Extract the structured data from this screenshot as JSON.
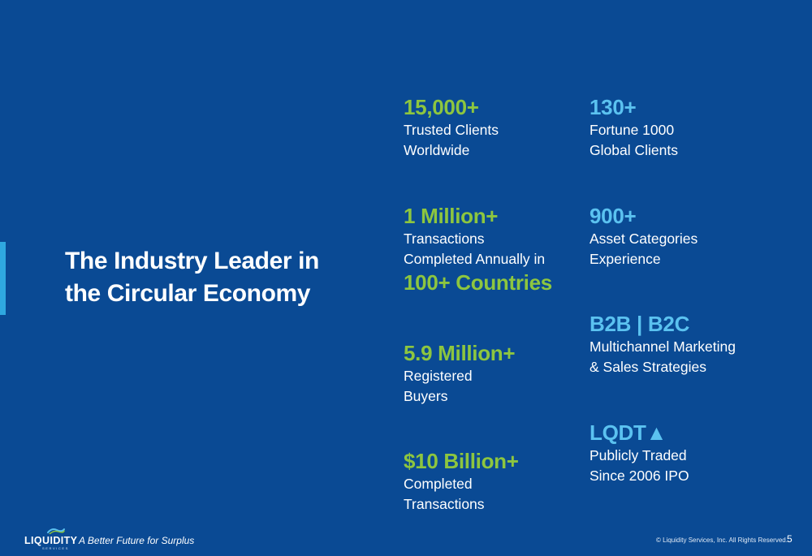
{
  "colors": {
    "background": "#0a4a94",
    "green": "#8dc63f",
    "blue": "#5bc2f0",
    "accent_bar": "#2fa8e0"
  },
  "headline": {
    "line1": "The Industry Leader in",
    "line2": "the Circular Economy"
  },
  "left_stats": [
    {
      "value": "15,000+",
      "label1": "Trusted Clients",
      "label2": "Worldwide"
    },
    {
      "value": "1 Million+",
      "label1": "Transactions",
      "label2": "Completed Annually in",
      "value2": "100+ Countries"
    },
    {
      "value": "5.9 Million+",
      "label1": "Registered",
      "label2": "Buyers"
    },
    {
      "value": "$10 Billion+",
      "label1": "Completed",
      "label2": "Transactions"
    }
  ],
  "right_stats": [
    {
      "value": "130+",
      "label1": "Fortune 1000",
      "label2": "Global Clients"
    },
    {
      "value": "900+",
      "label1": "Asset Categories",
      "label2": "Experience"
    },
    {
      "value": "B2B | B2C",
      "label1": "Multichannel Marketing",
      "label2": "& Sales Strategies"
    },
    {
      "value": "LQDT▲",
      "label1": "Publicly Traded",
      "label2": "Since 2006 IPO"
    }
  ],
  "footer": {
    "logo_text": "LIQUIDITY",
    "logo_subtext": "SERVICES",
    "logo_icon": "wave-logo-icon",
    "tagline": "A Better Future for Surplus",
    "copyright": "© Liquidity Services, Inc. All Rights Reserved.",
    "page_number": "5"
  }
}
